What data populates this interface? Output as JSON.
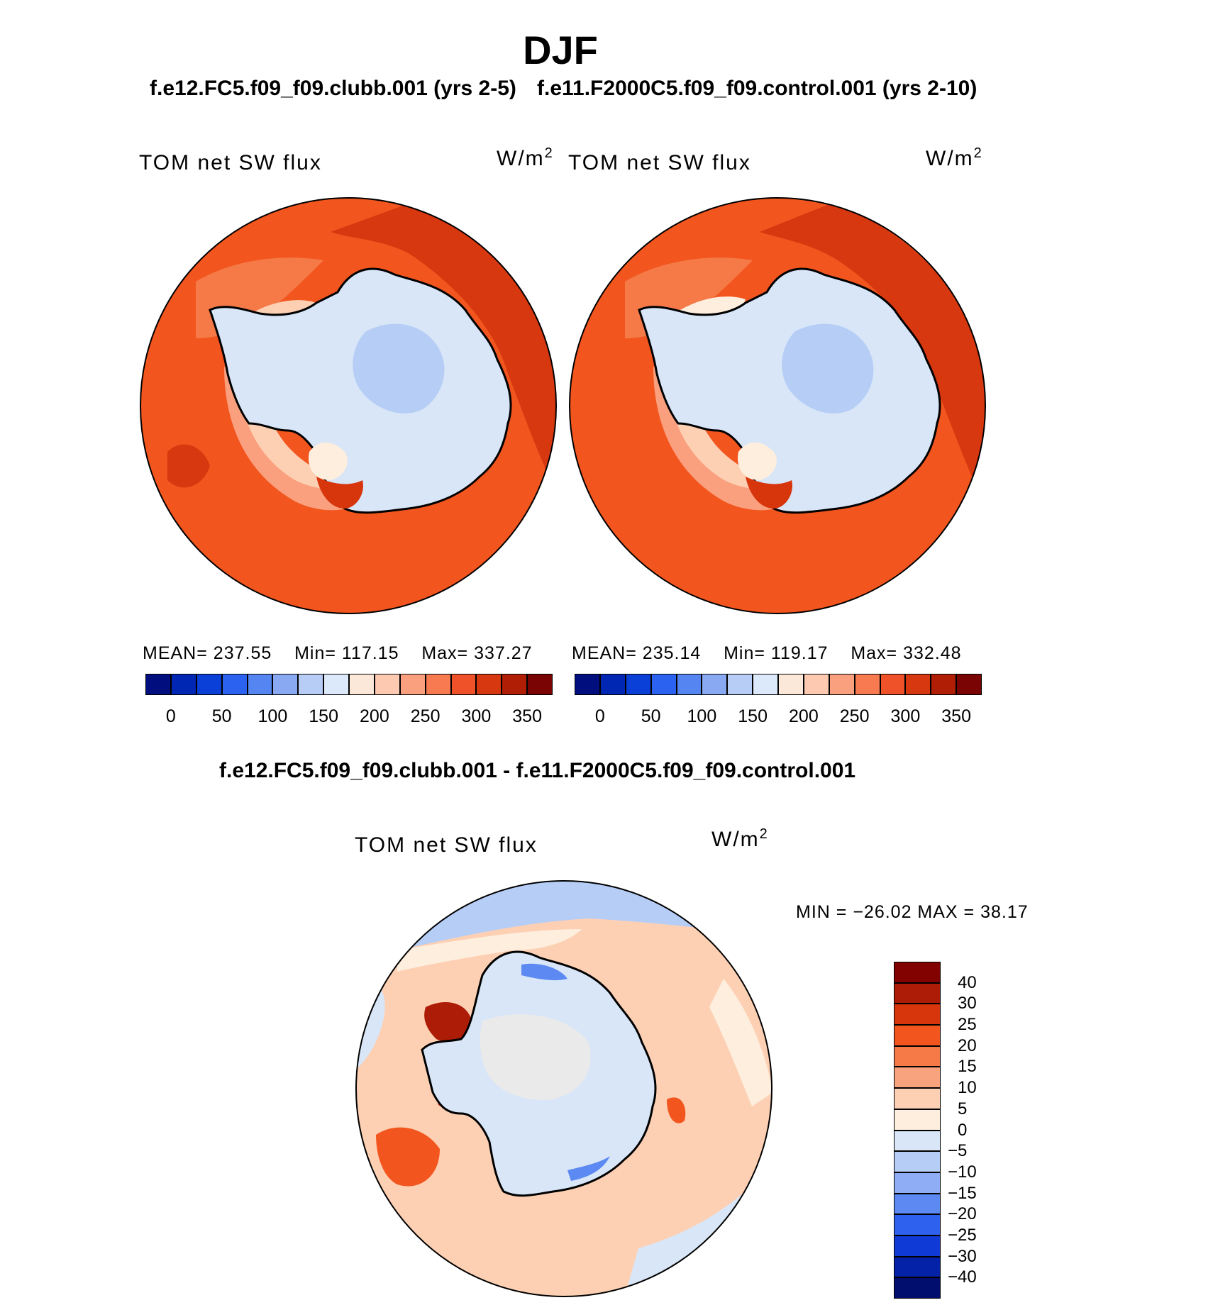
{
  "figure": {
    "season": "DJF",
    "panels": [
      {
        "case_title": "f.e12.FC5.f09_f09.clubb.001 (yrs 2-5)",
        "variable_label": "TOM net SW flux",
        "units_base": "W/m",
        "units_exp": "2",
        "stats": {
          "mean_label": "MEAN=",
          "mean": "237.55",
          "min_label": "Min=",
          "min": "117.15",
          "max_label": "Max=",
          "max": "337.27"
        }
      },
      {
        "case_title": "f.e11.F2000C5.f09_f09.control.001 (yrs 2-10)",
        "variable_label": "TOM net SW flux",
        "units_base": "W/m",
        "units_exp": "2",
        "stats": {
          "mean_label": "MEAN=",
          "mean": "235.14",
          "min_label": "Min=",
          "min": "119.17",
          "max_label": "Max=",
          "max": "332.48"
        }
      }
    ],
    "difference": {
      "title": "f.e12.FC5.f09_f09.clubb.001 - f.e11.F2000C5.f09_f09.control.001",
      "variable_label": "TOM net SW flux",
      "units_base": "W/m",
      "units_exp": "2",
      "minmax_text": "MIN = −26.02 MAX =   38.17"
    }
  },
  "chart_data": [
    {
      "type": "heatmap",
      "title": "TOM net SW flux",
      "case": "f.e12.FC5.f09_f09.clubb.001 (yrs 2-5)",
      "projection": "south-polar-stereographic",
      "units": "W/m2",
      "mean": 237.55,
      "min": 117.15,
      "max": 337.27,
      "colorbar_labels": [
        "0",
        "50",
        "100",
        "150",
        "200",
        "250",
        "300",
        "350"
      ],
      "colorbar_colors": [
        "#000e7e",
        "#0026b4",
        "#0a40d8",
        "#2b62f0",
        "#5585f0",
        "#89a9f2",
        "#b8cdf6",
        "#dbe9fa",
        "#fce8d8",
        "#fdc9b0",
        "#fba07e",
        "#f77a50",
        "#ef5228",
        "#d83810",
        "#b01e06",
        "#7a0403"
      ]
    },
    {
      "type": "heatmap",
      "title": "TOM net SW flux",
      "case": "f.e11.F2000C5.f09_f09.control.001 (yrs 2-10)",
      "projection": "south-polar-stereographic",
      "units": "W/m2",
      "mean": 235.14,
      "min": 119.17,
      "max": 332.48,
      "colorbar_labels": [
        "0",
        "50",
        "100",
        "150",
        "200",
        "250",
        "300",
        "350"
      ],
      "colorbar_colors": [
        "#000e7e",
        "#0026b4",
        "#0a40d8",
        "#2b62f0",
        "#5585f0",
        "#89a9f2",
        "#b8cdf6",
        "#dbe9fa",
        "#fce8d8",
        "#fdc9b0",
        "#fba07e",
        "#f77a50",
        "#ef5228",
        "#d83810",
        "#b01e06",
        "#7a0403"
      ]
    },
    {
      "type": "heatmap",
      "title": "TOM net SW flux",
      "case": "f.e12.FC5.f09_f09.clubb.001 - f.e11.F2000C5.f09_f09.control.001",
      "projection": "south-polar-stereographic",
      "units": "W/m2",
      "min": -26.02,
      "max": 38.17,
      "colorbar_labels": [
        "40",
        "30",
        "25",
        "20",
        "15",
        "10",
        "5",
        "0",
        "−5",
        "−10",
        "−15",
        "−20",
        "−25",
        "−30",
        "−40"
      ],
      "colorbar_colors": [
        "#820202",
        "#ad1c06",
        "#d7350c",
        "#f2561e",
        "#f57a48",
        "#f8a37e",
        "#fdd0b4",
        "#fdeede",
        "#d8e6f8",
        "#b6cdf6",
        "#8eadf4",
        "#5c89f2",
        "#2e62ee",
        "#0f3ad6",
        "#0422a8",
        "#020e6e"
      ]
    }
  ]
}
